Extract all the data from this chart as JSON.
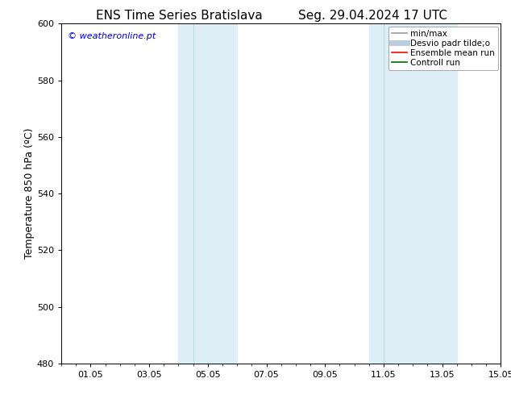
{
  "title_left": "ENS Time Series Bratislava",
  "title_right": "Seg. 29.04.2024 17 UTC",
  "ylabel": "Temperature 850 hPa (ºC)",
  "ylim": [
    480,
    600
  ],
  "yticks": [
    480,
    500,
    520,
    540,
    560,
    580,
    600
  ],
  "xlim_start": 0.0,
  "xlim_end": 15.0,
  "xtick_labels": [
    "01.05",
    "03.05",
    "05.05",
    "07.05",
    "09.05",
    "11.05",
    "13.05",
    "15.05"
  ],
  "xtick_positions": [
    1.0,
    3.0,
    5.0,
    7.0,
    9.0,
    11.0,
    13.0,
    15.0
  ],
  "watermark": "© weatheronline.pt",
  "watermark_color": "#0000cc",
  "background_color": "#ffffff",
  "plot_bg_color": "#ffffff",
  "shaded_bands": [
    {
      "x_start": 4.0,
      "x_end": 4.5,
      "color": "#ddeeff"
    },
    {
      "x_start": 4.5,
      "x_end": 6.0,
      "color": "#ddeeff"
    },
    {
      "x_start": 10.5,
      "x_end": 11.0,
      "color": "#ddeeff"
    },
    {
      "x_start": 11.0,
      "x_end": 13.5,
      "color": "#ddeeff"
    }
  ],
  "band_dividers": [
    4.5,
    11.0
  ],
  "legend_entries": [
    {
      "label": "min/max",
      "color": "#999999",
      "lw": 1.2
    },
    {
      "label": "Desvio padr tilde;o",
      "color": "#bbccdd",
      "lw": 5
    },
    {
      "label": "Ensemble mean run",
      "color": "#ff0000",
      "lw": 1.2
    },
    {
      "label": "Controll run",
      "color": "#006600",
      "lw": 1.2
    }
  ],
  "title_fontsize": 11,
  "axis_label_fontsize": 9,
  "tick_fontsize": 8,
  "legend_fontsize": 7.5,
  "watermark_fontsize": 8
}
